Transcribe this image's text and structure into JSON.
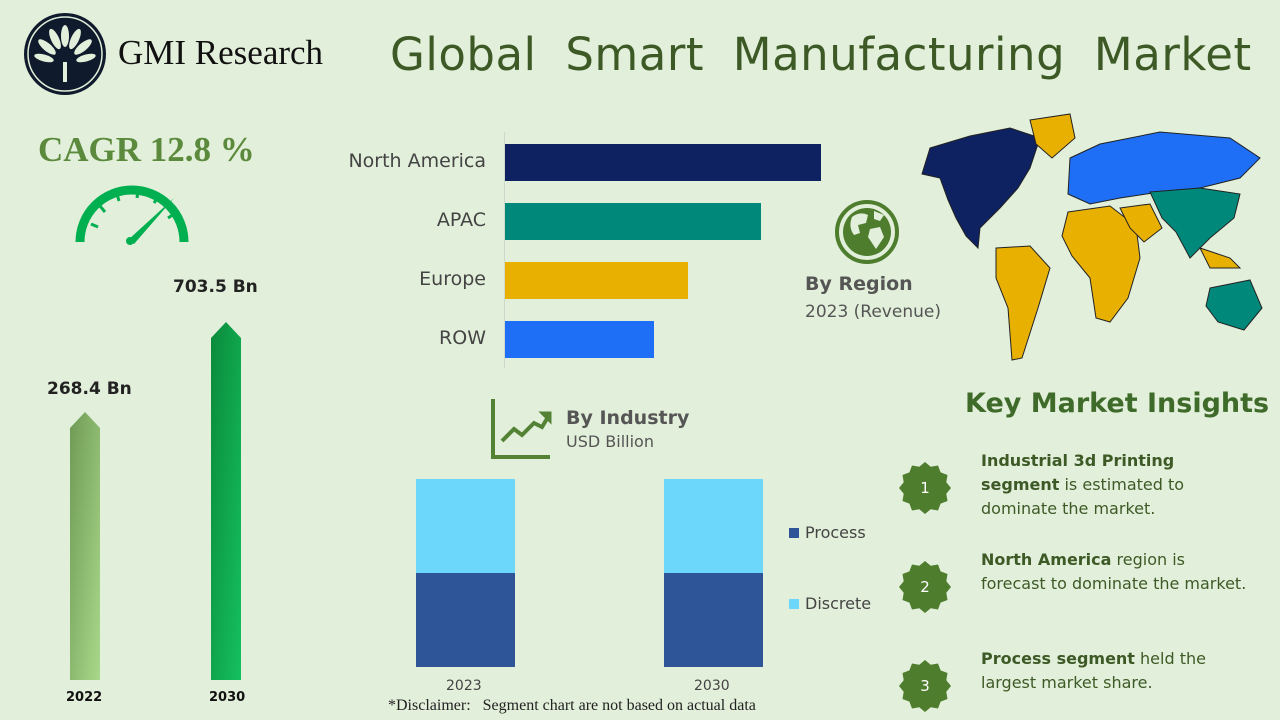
{
  "header": {
    "brand": "GMI Research",
    "title": "Global Smart Manufacturing Market"
  },
  "cagr": {
    "label": "CAGR 12.8 %",
    "icon": "speedometer-icon"
  },
  "market_size": {
    "bars": [
      {
        "year": "2022",
        "label": "268.4 Bn",
        "value": 268.4
      },
      {
        "year": "2030",
        "label": "703.5 Bn",
        "value": 703.5
      }
    ]
  },
  "region": {
    "title": "By Region",
    "subtitle": "2023 (Revenue)",
    "icon": "globe-icon"
  },
  "industry": {
    "title": "By Industry",
    "subtitle": "USD Billion",
    "icon": "trend-chart-icon"
  },
  "chart_data": [
    {
      "type": "bar",
      "orientation": "horizontal",
      "categories": [
        "North America",
        "APAC",
        "Europe",
        "ROW"
      ],
      "values": [
        100,
        81,
        58,
        47
      ],
      "colors": [
        "#0e2160",
        "#00897b",
        "#e8b000",
        "#1e6ff5"
      ],
      "grid": false
    },
    {
      "type": "bar",
      "stacked": true,
      "categories": [
        "2023",
        "2030"
      ],
      "series": [
        {
          "name": "Process",
          "values": [
            50,
            50
          ],
          "color": "#2e5597"
        },
        {
          "name": "Discrete",
          "values": [
            50,
            50
          ],
          "color": "#6dd6fb"
        }
      ],
      "legend": "right",
      "grid": false
    }
  ],
  "disclaimer": "*Disclaimer:   Segment chart are not based on actual data",
  "insights": {
    "title": "Key Market Insights",
    "items": [
      {
        "num": "1",
        "bold": "Industrial 3d Printing segment",
        "text": " is estimated to dominate the market."
      },
      {
        "num": "2",
        "bold": "North America",
        "text": " region is forecast to dominate the market."
      },
      {
        "num": "3",
        "bold": "Process segment",
        "text": " held the largest market share."
      }
    ]
  },
  "colors": {
    "background": "#e2efda",
    "title_green": "#3d5a26",
    "badge_green": "#4e7d2e",
    "gauge_green": "#00b050"
  }
}
